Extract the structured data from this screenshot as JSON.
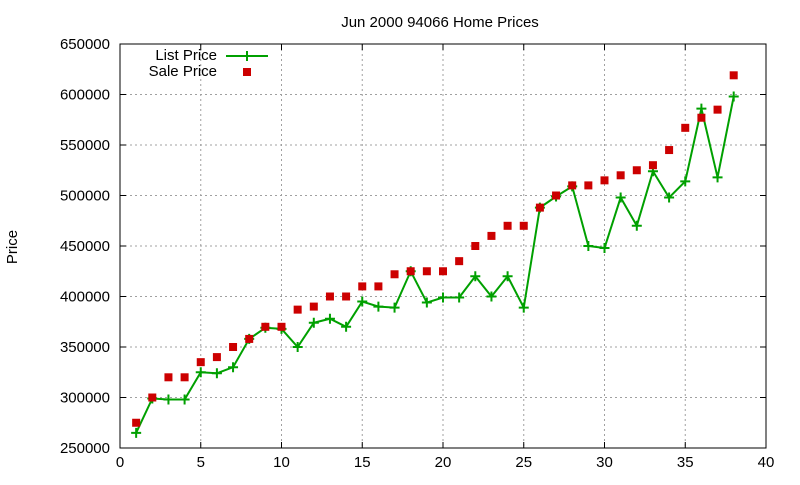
{
  "chart_data": {
    "type": "line",
    "title": "Jun 2000 94066 Home Prices",
    "xlabel": "",
    "ylabel": "Price",
    "xlim": [
      0,
      40
    ],
    "ylim": [
      250000,
      650000
    ],
    "xticks": [
      "0",
      "5",
      "10",
      "15",
      "20",
      "25",
      "30",
      "35",
      "40"
    ],
    "yticks": [
      "250000",
      "300000",
      "350000",
      "400000",
      "450000",
      "500000",
      "550000",
      "600000",
      "650000"
    ],
    "grid": true,
    "legend_position": "top-left",
    "x": [
      1,
      2,
      3,
      4,
      5,
      6,
      7,
      8,
      9,
      10,
      11,
      12,
      13,
      14,
      15,
      16,
      17,
      18,
      19,
      20,
      21,
      22,
      23,
      24,
      25,
      26,
      27,
      28,
      29,
      30,
      31,
      32,
      33,
      34,
      35,
      36,
      37,
      38
    ],
    "series": [
      {
        "name": "List Price",
        "style": "linespoints",
        "marker": "plus",
        "color": "#00a000",
        "values": [
          265000,
          299000,
          298000,
          298000,
          325000,
          324000,
          330000,
          358000,
          369000,
          368000,
          350000,
          374000,
          378000,
          370000,
          395000,
          390000,
          389000,
          425000,
          394000,
          399000,
          399000,
          420000,
          400000,
          420000,
          389000,
          488000,
          499000,
          509000,
          450000,
          448000,
          498000,
          470000,
          524000,
          498000,
          514000,
          586000,
          518000,
          598000
        ]
      },
      {
        "name": "Sale Price",
        "style": "points",
        "marker": "square",
        "color": "#cc0000",
        "values": [
          275000,
          300000,
          320000,
          320000,
          335000,
          340000,
          350000,
          358000,
          370000,
          370000,
          387000,
          390000,
          400000,
          400000,
          410000,
          410000,
          422000,
          425000,
          425000,
          425000,
          435000,
          450000,
          460000,
          470000,
          470000,
          488000,
          500000,
          510000,
          510000,
          515000,
          520000,
          525000,
          530000,
          545000,
          567000,
          577000,
          585000,
          619000
        ]
      }
    ]
  }
}
